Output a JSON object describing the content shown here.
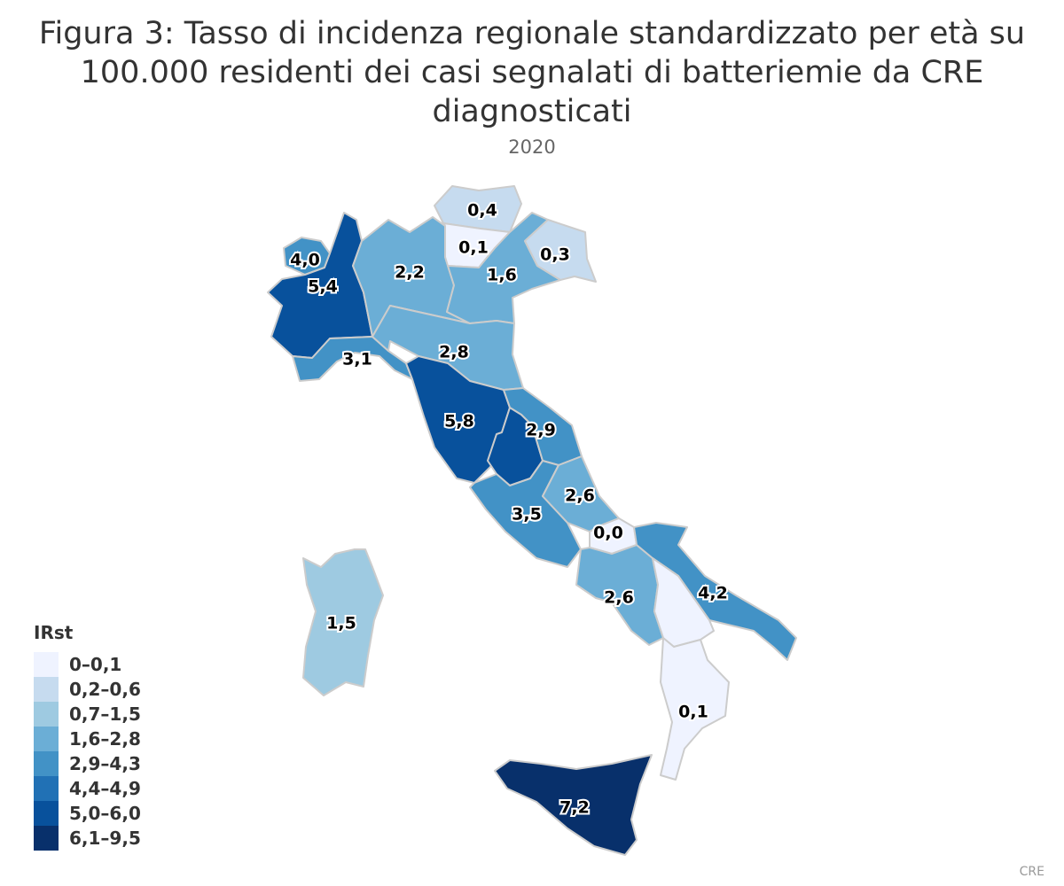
{
  "title": "Figura 3: Tasso di incidenza regionale standardizzato per età su 100.000 residenti dei casi segnalati di batteriemie da CRE diagnosticati",
  "subtitle": "2020",
  "credits": "CRE",
  "legend": {
    "title": "IRst",
    "items": [
      {
        "label": "0–0,1",
        "color": "#eff3ff"
      },
      {
        "label": "0,2–0,6",
        "color": "#c6dbef"
      },
      {
        "label": "0,7–1,5",
        "color": "#9ecae1"
      },
      {
        "label": "1,6–2,8",
        "color": "#6baed6"
      },
      {
        "label": "2,9–4,3",
        "color": "#4292c6"
      },
      {
        "label": "4,4–4,9",
        "color": "#2171b5"
      },
      {
        "label": "5,0–6,0",
        "color": "#08519c"
      },
      {
        "label": "6,1–9,5",
        "color": "#08306b"
      }
    ]
  },
  "chart_data": {
    "type": "choropleth",
    "metric": "IRst",
    "regions": [
      {
        "id": "valle-d-aosta",
        "value": 4.0,
        "label": "4,0"
      },
      {
        "id": "piemonte",
        "value": 5.4,
        "label": "5,4"
      },
      {
        "id": "lombardia",
        "value": 2.2,
        "label": "2,2"
      },
      {
        "id": "alto-adige",
        "value": 0.4,
        "label": "0,4"
      },
      {
        "id": "trentino",
        "value": 0.1,
        "label": "0,1"
      },
      {
        "id": "veneto",
        "value": 1.6,
        "label": "1,6"
      },
      {
        "id": "friuli-venezia-giulia",
        "value": 0.3,
        "label": "0,3"
      },
      {
        "id": "liguria",
        "value": 3.1,
        "label": "3,1"
      },
      {
        "id": "emilia-romagna",
        "value": 2.8,
        "label": "2,8"
      },
      {
        "id": "toscana",
        "value": 5.8,
        "label": "5,8"
      },
      {
        "id": "umbria",
        "value": 5.8,
        "label": ""
      },
      {
        "id": "marche",
        "value": 2.9,
        "label": "2,9"
      },
      {
        "id": "lazio",
        "value": 3.5,
        "label": "3,5"
      },
      {
        "id": "abruzzo",
        "value": 2.6,
        "label": "2,6"
      },
      {
        "id": "molise",
        "value": 0.0,
        "label": "0,0"
      },
      {
        "id": "campania",
        "value": 2.6,
        "label": "2,6"
      },
      {
        "id": "puglia",
        "value": 4.2,
        "label": "4,2"
      },
      {
        "id": "basilicata",
        "value": 0.1,
        "label": ""
      },
      {
        "id": "calabria",
        "value": 0.1,
        "label": "0,1"
      },
      {
        "id": "sicilia",
        "value": 7.2,
        "label": "7,2"
      },
      {
        "id": "sardegna",
        "value": 1.5,
        "label": "1,5"
      }
    ]
  }
}
